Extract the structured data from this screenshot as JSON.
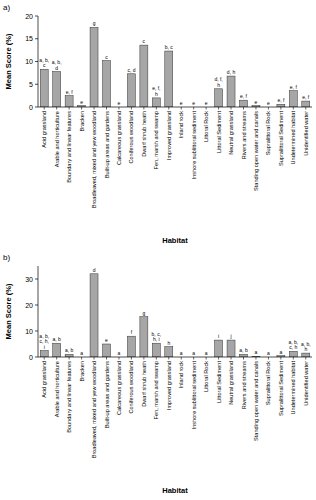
{
  "chart_data": [
    {
      "type": "bar",
      "title": "a)",
      "x_label": "Habitat",
      "y_label": "Mean Score (%)",
      "categories": [
        "Acid grassland",
        "Arable and horticulture",
        "Boundary and linear features",
        "Bracken",
        "Broadleaved, mixed and yew woodland",
        "Built-up areas and gardens",
        "Calcareous grassland",
        "Coniferous woodland",
        "Dwarf shrub heath",
        "Fen, marsh and swamp",
        "Improved grassland",
        "Inland rock",
        "Inshore sublittoral sediment",
        "Littoral Rock",
        "Littoral Sediment",
        "Neutral grassland",
        "Rivers and streams",
        "Standing open water and canals",
        "Supralittoral Rock",
        "Supralittoral Sediment",
        "Undetermined habitat",
        "Unidentified water"
      ],
      "values": [
        8.3,
        7.8,
        2.5,
        0.3,
        17.5,
        10.2,
        0,
        7.3,
        13.6,
        2.0,
        12.3,
        0,
        0,
        0,
        4.0,
        6.8,
        1.5,
        0.3,
        0,
        0.6,
        3.6,
        1.3
      ],
      "annotations": [
        "a, b, c",
        "a, b, d",
        "e, f",
        "e",
        "g",
        "c",
        "e",
        "c, d",
        "c",
        "e, f, h",
        "b, c",
        "e",
        "e",
        "e",
        "d, f, h",
        "d, h",
        "e, f",
        "e",
        "e",
        "e, f",
        "e, f",
        "e, f"
      ],
      "color": "#a6a6a6",
      "ylim": [
        0,
        20
      ],
      "yticks": [
        0,
        5,
        10,
        15,
        20
      ],
      "grid": false
    },
    {
      "type": "bar",
      "title": "b)",
      "x_label": "Habitat",
      "y_label": "Mean Score (%)",
      "categories": [
        "Acid grassland",
        "Arable and horticulture",
        "Boundary and linear features",
        "Bracken",
        "Broadleaved, mixed and yew woodland",
        "Built-up areas and gardens",
        "Calcareous grassland",
        "Coniferous woodland",
        "Dwarf shrub heath",
        "Fen, marsh and swamp",
        "Improved grassland",
        "Inland rock",
        "Inshore sublittoral sediment",
        "Littoral Rock",
        "Littoral Sediment",
        "Neutral grassland",
        "Rivers and streams",
        "Standing open water and canals",
        "Supralittoral Rock",
        "Supralittoral Sediment",
        "Undetermined habitat",
        "Unidentified water"
      ],
      "values": [
        2.5,
        5.3,
        1.0,
        0,
        32,
        5.0,
        0,
        8.0,
        15.5,
        5.3,
        4.0,
        0,
        0,
        0,
        6.5,
        6.5,
        1.0,
        0.2,
        0,
        0.5,
        2.2,
        1.5
      ],
      "annotations": [
        "a, b, c, h, i",
        "a, b",
        "a, b",
        "a",
        "d",
        "e",
        "a",
        "f",
        "g",
        "b, c, h, i",
        "h",
        "a",
        "a",
        "a",
        "i",
        "j",
        "a, b",
        "a",
        "a",
        "a",
        "a, b, c, h",
        "a, b, h"
      ],
      "color": "#a6a6a6",
      "ylim": [
        0,
        35
      ],
      "yticks": [
        0,
        10,
        20,
        30
      ],
      "grid": false
    }
  ]
}
